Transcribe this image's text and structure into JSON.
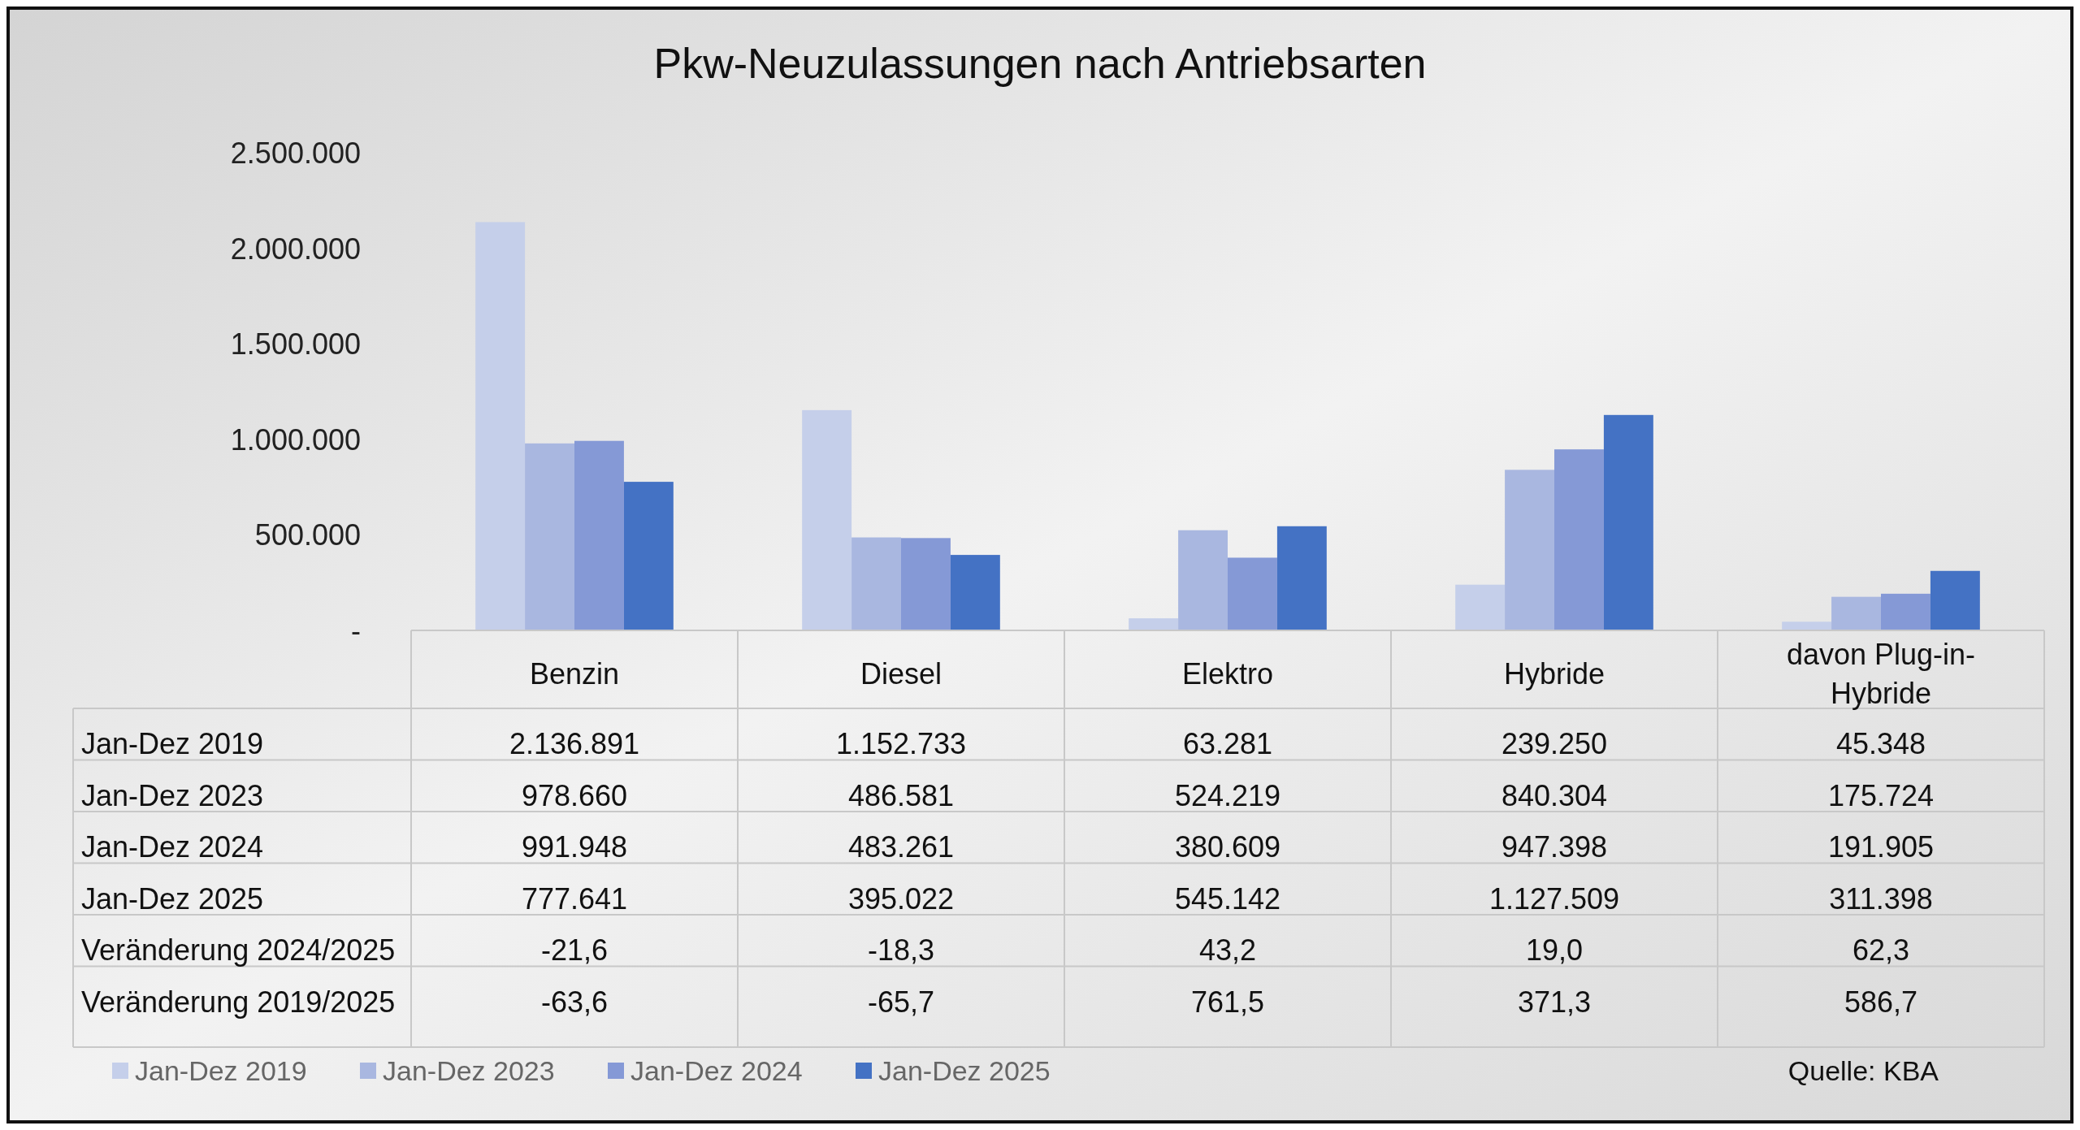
{
  "chart_data": {
    "type": "bar",
    "title": "Pkw-Neuzulassungen nach Antriebsarten",
    "categories": [
      "Benzin",
      "Diesel",
      "Elektro",
      "Hybride",
      "davon Plug-in-Hybride"
    ],
    "series": [
      {
        "name": "Jan-Dez 2019",
        "color": "#c5cfea",
        "values": [
          2136891,
          1152733,
          63281,
          239250,
          45348
        ],
        "value_labels": [
          "2.136.891",
          "1.152.733",
          "63.281",
          "239.250",
          "45.348"
        ]
      },
      {
        "name": "Jan-Dez 2023",
        "color": "#a9b7e0",
        "values": [
          978660,
          486581,
          524219,
          840304,
          175724
        ],
        "value_labels": [
          "978.660",
          "486.581",
          "524.219",
          "840.304",
          "175.724"
        ]
      },
      {
        "name": "Jan-Dez 2024",
        "color": "#8599d6",
        "values": [
          991948,
          483261,
          380609,
          947398,
          191905
        ],
        "value_labels": [
          "991.948",
          "483.261",
          "380.609",
          "947.398",
          "191.905"
        ]
      },
      {
        "name": "Jan-Dez 2025",
        "color": "#4472c4",
        "values": [
          777641,
          395022,
          545142,
          1127509,
          311398
        ],
        "value_labels": [
          "777.641",
          "395.022",
          "545.142",
          "1.127.509",
          "311.398"
        ]
      }
    ],
    "ylim": [
      0,
      2500000
    ],
    "yticks": [
      {
        "value": 0,
        "label": "-"
      },
      {
        "value": 500000,
        "label": "500.000"
      },
      {
        "value": 1000000,
        "label": "1.000.000"
      },
      {
        "value": 1500000,
        "label": "1.500.000"
      },
      {
        "value": 2000000,
        "label": "2.000.000"
      },
      {
        "value": 2500000,
        "label": "2.500.000"
      }
    ],
    "grid": false,
    "legend": "bottom",
    "annotations": [
      "Veränderung 2024/2025",
      "-21,6",
      "-18,3",
      "43,2",
      "19,0",
      "62,3",
      "Veränderung 2019/2025",
      "-63,6",
      "-65,7",
      "761,5",
      "371,3",
      "586,7",
      "Quelle: KBA"
    ]
  }
}
